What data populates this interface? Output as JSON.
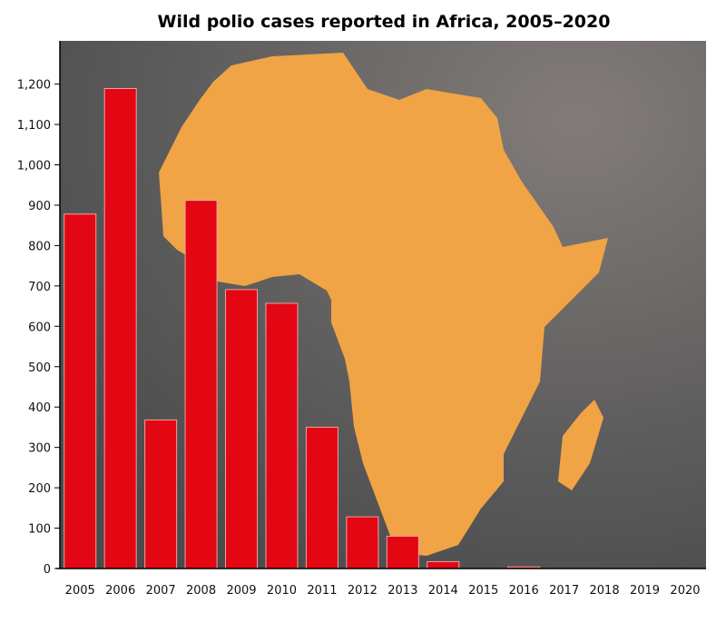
{
  "chart_data": {
    "type": "bar",
    "title": "Wild polio cases reported in Africa, 2005–2020",
    "xlabel": "",
    "ylabel": "",
    "categories": [
      "2005",
      "2006",
      "2007",
      "2008",
      "2009",
      "2010",
      "2011",
      "2012",
      "2013",
      "2014",
      "2015",
      "2016",
      "2017",
      "2018",
      "2019",
      "2020"
    ],
    "values": [
      878,
      1189,
      368,
      912,
      691,
      657,
      350,
      128,
      80,
      17,
      0,
      4,
      0,
      0,
      0,
      0
    ],
    "ylim": [
      0,
      1300
    ],
    "yticks": [
      0,
      100,
      200,
      300,
      400,
      500,
      600,
      700,
      800,
      900,
      1000,
      1100,
      1200
    ],
    "ytick_labels": [
      "0",
      "100",
      "200",
      "300",
      "400",
      "500",
      "600",
      "700",
      "800",
      "900",
      "1,000",
      "1,100",
      "1,200"
    ],
    "grid": false,
    "colors": {
      "bar": "#e30613",
      "bar_border": "#f0a0a0",
      "map": "#f0a445",
      "background": "#5a5a5a"
    }
  }
}
